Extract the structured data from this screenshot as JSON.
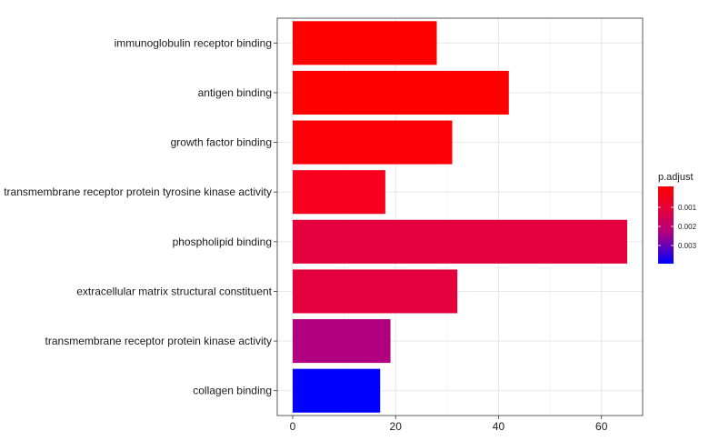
{
  "chart_data": {
    "type": "bar",
    "orientation": "horizontal",
    "categories": [
      "immunoglobulin receptor binding",
      "antigen binding",
      "growth factor binding",
      "transmembrane receptor protein tyrosine kinase activity",
      "phospholipid binding",
      "extracellular matrix structural constituent",
      "transmembrane receptor protein kinase activity",
      "collagen binding"
    ],
    "values": [
      28,
      42,
      31,
      18,
      65,
      32,
      19,
      17
    ],
    "colors": [
      "#ff0000",
      "#ff0000",
      "#fd0007",
      "#f8001e",
      "#e3003d",
      "#e3003d",
      "#b0007f",
      "#0000ff"
    ],
    "xlim": [
      -3,
      68
    ],
    "xticks": [
      "0",
      "20",
      "40",
      "60"
    ],
    "xtick_values": [
      0,
      20,
      40,
      60
    ],
    "grid": true,
    "legend": {
      "title": "p.adjust",
      "placement": "right",
      "ticks": [
        "0.001",
        "0.002",
        "0.003"
      ],
      "colors": [
        "#ff0000",
        "#b0007f",
        "#0000ff"
      ]
    }
  }
}
